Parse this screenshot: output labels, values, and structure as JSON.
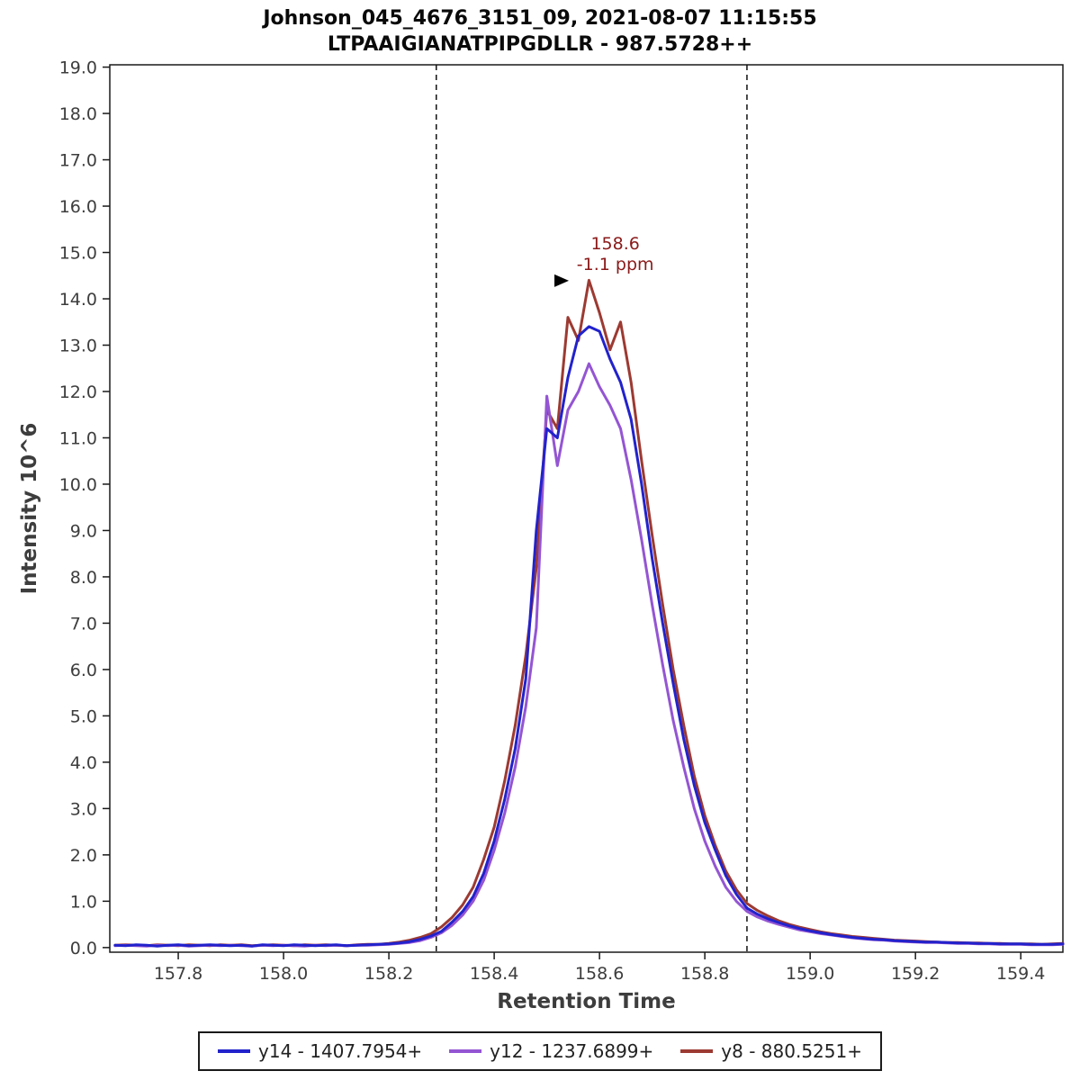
{
  "title": {
    "line1": "Johnson_045_4676_3151_09, 2021-08-07 11:15:55",
    "line2": "LTPAAIGIANATPIPGDLLR - 987.5728++"
  },
  "chart_data": {
    "type": "line",
    "title": "Johnson_045_4676_3151_09, 2021-08-07 11:15:55",
    "subtitle": "LTPAAIGIANATPIPGDLLR - 987.5728++",
    "xlabel": "Retention Time",
    "ylabel": "Intensity 10^6",
    "xlim": [
      157.67,
      159.48
    ],
    "ylim": [
      -0.1,
      19.05
    ],
    "xticks": [
      157.8,
      158.0,
      158.2,
      158.4,
      158.6,
      158.8,
      159.0,
      159.2,
      159.4
    ],
    "yticks": [
      0.0,
      1.0,
      2.0,
      3.0,
      4.0,
      5.0,
      6.0,
      7.0,
      8.0,
      9.0,
      10.0,
      11.0,
      12.0,
      13.0,
      14.0,
      15.0,
      16.0,
      17.0,
      18.0,
      19.0
    ],
    "grid": false,
    "legend_position": "bottom",
    "x_start": 157.68,
    "x_step": 0.02,
    "boundaries": [
      158.29,
      158.88
    ],
    "annotation": {
      "rt_label": "158.6",
      "ppm_label": "-1.1 ppm",
      "x": 158.63,
      "label_y": 15.07,
      "ppm_y": 14.62,
      "color": "#8b1a1a",
      "marker": {
        "x": 158.54,
        "y": 14.39
      }
    },
    "series": [
      {
        "name": "y14 - 1407.7954+",
        "color": "#2222cc",
        "values": [
          0.05,
          0.04,
          0.06,
          0.05,
          0.03,
          0.05,
          0.06,
          0.04,
          0.05,
          0.06,
          0.05,
          0.04,
          0.05,
          0.03,
          0.06,
          0.05,
          0.04,
          0.06,
          0.05,
          0.04,
          0.05,
          0.06,
          0.04,
          0.05,
          0.06,
          0.07,
          0.08,
          0.1,
          0.13,
          0.18,
          0.25,
          0.35,
          0.55,
          0.78,
          1.1,
          1.6,
          2.3,
          3.2,
          4.3,
          5.8,
          9.0,
          11.2,
          11.0,
          12.3,
          13.2,
          13.4,
          13.3,
          12.7,
          12.2,
          11.4,
          10.0,
          8.4,
          7.0,
          5.7,
          4.5,
          3.5,
          2.7,
          2.1,
          1.55,
          1.15,
          0.85,
          0.72,
          0.62,
          0.54,
          0.47,
          0.41,
          0.36,
          0.32,
          0.28,
          0.25,
          0.22,
          0.2,
          0.18,
          0.17,
          0.15,
          0.14,
          0.13,
          0.12,
          0.12,
          0.11,
          0.1,
          0.1,
          0.09,
          0.09,
          0.08,
          0.08,
          0.08,
          0.07,
          0.07,
          0.07,
          0.08
        ]
      },
      {
        "name": "y12 - 1237.6899+",
        "color": "#9455d3",
        "values": [
          0.04,
          0.05,
          0.04,
          0.03,
          0.05,
          0.04,
          0.05,
          0.03,
          0.04,
          0.05,
          0.04,
          0.05,
          0.04,
          0.03,
          0.05,
          0.04,
          0.05,
          0.04,
          0.03,
          0.05,
          0.04,
          0.05,
          0.04,
          0.05,
          0.05,
          0.06,
          0.07,
          0.09,
          0.11,
          0.15,
          0.22,
          0.32,
          0.48,
          0.7,
          1.0,
          1.45,
          2.1,
          2.9,
          3.9,
          5.2,
          6.9,
          11.9,
          10.4,
          11.6,
          12.0,
          12.6,
          12.1,
          11.7,
          11.2,
          10.1,
          8.8,
          7.4,
          6.1,
          4.9,
          3.9,
          3.0,
          2.3,
          1.75,
          1.3,
          1.0,
          0.78,
          0.66,
          0.57,
          0.5,
          0.44,
          0.38,
          0.34,
          0.3,
          0.27,
          0.24,
          0.21,
          0.19,
          0.17,
          0.16,
          0.14,
          0.13,
          0.12,
          0.11,
          0.11,
          0.1,
          0.09,
          0.09,
          0.08,
          0.08,
          0.07,
          0.07,
          0.07,
          0.06,
          0.06,
          0.06,
          0.07
        ]
      },
      {
        "name": "y8 - 880.5251+",
        "color": "#9c3a32",
        "values": [
          0.05,
          0.06,
          0.05,
          0.04,
          0.06,
          0.05,
          0.04,
          0.06,
          0.05,
          0.04,
          0.06,
          0.05,
          0.06,
          0.04,
          0.05,
          0.06,
          0.05,
          0.04,
          0.06,
          0.05,
          0.06,
          0.05,
          0.04,
          0.06,
          0.07,
          0.07,
          0.09,
          0.12,
          0.16,
          0.22,
          0.3,
          0.45,
          0.65,
          0.92,
          1.3,
          1.9,
          2.6,
          3.6,
          4.8,
          6.3,
          8.2,
          11.6,
          11.2,
          13.6,
          13.1,
          14.4,
          13.7,
          12.9,
          13.5,
          12.2,
          10.5,
          8.9,
          7.4,
          6.0,
          4.8,
          3.7,
          2.85,
          2.2,
          1.65,
          1.25,
          0.95,
          0.8,
          0.68,
          0.58,
          0.5,
          0.44,
          0.39,
          0.34,
          0.3,
          0.27,
          0.24,
          0.22,
          0.2,
          0.18,
          0.16,
          0.15,
          0.14,
          0.13,
          0.12,
          0.11,
          0.11,
          0.1,
          0.1,
          0.09,
          0.09,
          0.08,
          0.08,
          0.08,
          0.07,
          0.08,
          0.09
        ]
      }
    ]
  },
  "legend": {
    "items": [
      {
        "label": "y14 - 1407.7954+"
      },
      {
        "label": "y12 - 1237.6899+"
      },
      {
        "label": "y8 - 880.5251+"
      }
    ]
  }
}
